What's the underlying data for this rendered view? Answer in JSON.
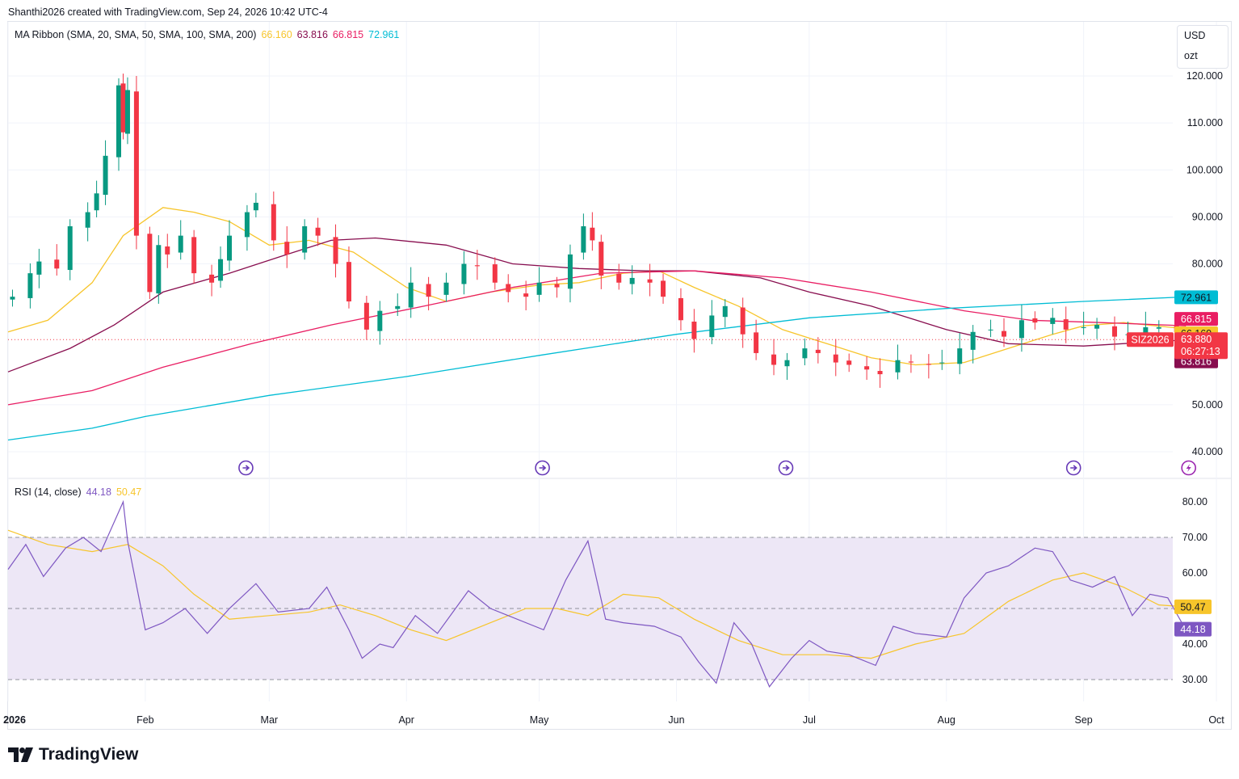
{
  "header": {
    "attribution": "Shanthi2026 created with TradingView.com, Sep 24, 2026 10:42 UTC-4"
  },
  "unit_selector": {
    "currency": "USD",
    "unit": "ozt"
  },
  "legend_main": {
    "label": "MA Ribbon (SMA, 20, SMA, 50, SMA, 100, SMA, 200)",
    "values": [
      "66.160",
      "63.816",
      "66.815",
      "72.961"
    ]
  },
  "legend_rsi": {
    "label": "RSI (14, close)",
    "values": [
      "44.18",
      "50.47"
    ]
  },
  "symbol_badge": {
    "symbol": "SIZ2026",
    "price": "63.880",
    "countdown": "06:27:13"
  },
  "logo": {
    "text": "TradingView"
  },
  "colors": {
    "up": "#089981",
    "down": "#f23645",
    "sma20": "#f7c52b",
    "sma50": "#880e4f",
    "sma100": "#e91e63",
    "sma200": "#00bcd4",
    "rsi": "#7e57c2",
    "rsi_ma": "#f7c52b",
    "rsi_band": "#ede7f6",
    "event_icon": "#673ab7"
  },
  "chart_data": [
    {
      "type": "candlestick",
      "title": "",
      "xlabel": "",
      "ylabel": "",
      "ylim": [
        36,
        128
      ],
      "y_ticks": [
        "120.000",
        "110.000",
        "100.000",
        "90.000",
        "80.000",
        "50.000",
        "40.000"
      ],
      "x_ticks": [
        "2026",
        "Feb",
        "Mar",
        "Apr",
        "May",
        "Jun",
        "Jul",
        "Aug",
        "Sep",
        "Oct"
      ],
      "close_points": [
        [
          "2026-01-02",
          73.0
        ],
        [
          "2026-01-06",
          78.0
        ],
        [
          "2026-01-08",
          80.5
        ],
        [
          "2026-01-12",
          79.0
        ],
        [
          "2026-01-15",
          88.0
        ],
        [
          "2026-01-19",
          91.0
        ],
        [
          "2026-01-21",
          95.0
        ],
        [
          "2026-01-23",
          103.0
        ],
        [
          "2026-01-26",
          118.0
        ],
        [
          "2026-01-27",
          108.0
        ],
        [
          "2026-01-28",
          117.0
        ],
        [
          "2026-01-30",
          86.0
        ],
        [
          "2026-02-02",
          74.0
        ],
        [
          "2026-02-04",
          84.0
        ],
        [
          "2026-02-06",
          82.0
        ],
        [
          "2026-02-09",
          86.0
        ],
        [
          "2026-02-12",
          78.0
        ],
        [
          "2026-02-16",
          76.0
        ],
        [
          "2026-02-18",
          81.0
        ],
        [
          "2026-02-20",
          86.0
        ],
        [
          "2026-02-24",
          91.0
        ],
        [
          "2026-02-26",
          93.0
        ],
        [
          "2026-03-02",
          85.0
        ],
        [
          "2026-03-05",
          82.0
        ],
        [
          "2026-03-09",
          88.0
        ],
        [
          "2026-03-12",
          86.0
        ],
        [
          "2026-03-16",
          80.0
        ],
        [
          "2026-03-19",
          72.0
        ],
        [
          "2026-03-23",
          66.0
        ],
        [
          "2026-03-26",
          70.0
        ],
        [
          "2026-03-30",
          71.0
        ],
        [
          "2026-04-02",
          76.0
        ],
        [
          "2026-04-06",
          73.0
        ],
        [
          "2026-04-10",
          76.0
        ],
        [
          "2026-04-14",
          80.0
        ],
        [
          "2026-04-17",
          79.5
        ],
        [
          "2026-04-21",
          76.0
        ],
        [
          "2026-04-24",
          74.0
        ],
        [
          "2026-04-28",
          73.0
        ],
        [
          "2026-05-01",
          76.0
        ],
        [
          "2026-05-05",
          75.0
        ],
        [
          "2026-05-08",
          82.0
        ],
        [
          "2026-05-11",
          88.0
        ],
        [
          "2026-05-13",
          85.0
        ],
        [
          "2026-05-15",
          77.5
        ],
        [
          "2026-05-19",
          76.0
        ],
        [
          "2026-05-22",
          77.0
        ],
        [
          "2026-05-26",
          76.0
        ],
        [
          "2026-05-29",
          73.0
        ],
        [
          "2026-06-02",
          68.0
        ],
        [
          "2026-06-05",
          64.0
        ],
        [
          "2026-06-09",
          69.0
        ],
        [
          "2026-06-12",
          71.0
        ],
        [
          "2026-06-16",
          65.0
        ],
        [
          "2026-06-19",
          61.0
        ],
        [
          "2026-06-23",
          58.5
        ],
        [
          "2026-06-26",
          59.5
        ],
        [
          "2026-06-30",
          62.0
        ],
        [
          "2026-07-03",
          61.0
        ],
        [
          "2026-07-07",
          59.0
        ],
        [
          "2026-07-10",
          58.5
        ],
        [
          "2026-07-14",
          57.5
        ],
        [
          "2026-07-17",
          56.5
        ],
        [
          "2026-07-21",
          59.5
        ],
        [
          "2026-07-24",
          59.0
        ],
        [
          "2026-07-28",
          58.5
        ],
        [
          "2026-07-31",
          59.0
        ],
        [
          "2026-08-04",
          62.0
        ],
        [
          "2026-08-07",
          65.5
        ],
        [
          "2026-08-11",
          66.0
        ],
        [
          "2026-08-14",
          64.5
        ],
        [
          "2026-08-18",
          68.0
        ],
        [
          "2026-08-21",
          67.5
        ],
        [
          "2026-08-25",
          68.5
        ],
        [
          "2026-08-28",
          66.0
        ],
        [
          "2026-09-01",
          66.5
        ],
        [
          "2026-09-04",
          67.0
        ],
        [
          "2026-09-08",
          64.5
        ],
        [
          "2026-09-11",
          65.0
        ],
        [
          "2026-09-15",
          66.5
        ],
        [
          "2026-09-18",
          66.5
        ],
        [
          "2026-09-22",
          65.5
        ],
        [
          "2026-09-24",
          63.88
        ]
      ],
      "series": [
        {
          "name": "SMA 20",
          "last": 66.16,
          "points": [
            [
              "2026-01-01",
              65.5
            ],
            [
              "2026-01-10",
              68.0
            ],
            [
              "2026-01-20",
              76.0
            ],
            [
              "2026-01-27",
              86.0
            ],
            [
              "2026-02-05",
              92.0
            ],
            [
              "2026-02-12",
              91.0
            ],
            [
              "2026-02-20",
              89.0
            ],
            [
              "2026-03-01",
              84.0
            ],
            [
              "2026-03-10",
              85.0
            ],
            [
              "2026-03-20",
              82.5
            ],
            [
              "2026-04-01",
              75.0
            ],
            [
              "2026-04-10",
              72.0
            ],
            [
              "2026-04-20",
              74.0
            ],
            [
              "2026-05-01",
              75.5
            ],
            [
              "2026-05-10",
              76.0
            ],
            [
              "2026-05-20",
              78.0
            ],
            [
              "2026-05-28",
              78.5
            ],
            [
              "2026-06-05",
              75.0
            ],
            [
              "2026-06-15",
              71.0
            ],
            [
              "2026-06-25",
              66.0
            ],
            [
              "2026-07-05",
              63.0
            ],
            [
              "2026-07-15",
              60.0
            ],
            [
              "2026-07-25",
              58.5
            ],
            [
              "2026-08-05",
              59.0
            ],
            [
              "2026-08-15",
              62.0
            ],
            [
              "2026-08-25",
              65.0
            ],
            [
              "2026-09-01",
              66.8
            ],
            [
              "2026-09-10",
              67.5
            ],
            [
              "2026-09-24",
              66.16
            ]
          ]
        },
        {
          "name": "SMA 50",
          "last": 63.816,
          "points": [
            [
              "2026-01-01",
              57.0
            ],
            [
              "2026-01-15",
              62.0
            ],
            [
              "2026-01-25",
              67.0
            ],
            [
              "2026-02-05",
              74.0
            ],
            [
              "2026-02-20",
              78.0
            ],
            [
              "2026-03-05",
              82.0
            ],
            [
              "2026-03-15",
              85.0
            ],
            [
              "2026-03-25",
              85.5
            ],
            [
              "2026-04-10",
              84.0
            ],
            [
              "2026-04-25",
              80.0
            ],
            [
              "2026-05-10",
              79.0
            ],
            [
              "2026-05-25",
              78.5
            ],
            [
              "2026-06-05",
              78.5
            ],
            [
              "2026-06-20",
              77.0
            ],
            [
              "2026-07-01",
              74.0
            ],
            [
              "2026-07-15",
              71.0
            ],
            [
              "2026-08-01",
              66.0
            ],
            [
              "2026-08-15",
              63.0
            ],
            [
              "2026-09-01",
              62.5
            ],
            [
              "2026-09-24",
              63.816
            ]
          ]
        },
        {
          "name": "SMA 100",
          "last": 66.815,
          "points": [
            [
              "2026-01-01",
              50.0
            ],
            [
              "2026-01-20",
              53.0
            ],
            [
              "2026-02-05",
              58.0
            ],
            [
              "2026-02-25",
              63.0
            ],
            [
              "2026-03-15",
              67.0
            ],
            [
              "2026-04-05",
              71.0
            ],
            [
              "2026-04-25",
              75.0
            ],
            [
              "2026-05-15",
              78.0
            ],
            [
              "2026-06-05",
              78.5
            ],
            [
              "2026-06-25",
              77.0
            ],
            [
              "2026-07-15",
              74.0
            ],
            [
              "2026-08-05",
              70.0
            ],
            [
              "2026-08-20",
              68.0
            ],
            [
              "2026-09-05",
              67.5
            ],
            [
              "2026-09-24",
              66.815
            ]
          ]
        },
        {
          "name": "SMA 200",
          "last": 72.961,
          "points": [
            [
              "2026-01-01",
              42.5
            ],
            [
              "2026-01-20",
              45.0
            ],
            [
              "2026-02-01",
              47.5
            ],
            [
              "2026-03-01",
              52.0
            ],
            [
              "2026-04-01",
              56.0
            ],
            [
              "2026-05-01",
              60.5
            ],
            [
              "2026-06-01",
              65.0
            ],
            [
              "2026-07-01",
              68.5
            ],
            [
              "2026-08-01",
              70.5
            ],
            [
              "2026-09-01",
              72.0
            ],
            [
              "2026-09-24",
              72.961
            ]
          ]
        }
      ]
    },
    {
      "type": "line",
      "title": "",
      "xlabel": "",
      "ylabel": "",
      "ylim": [
        27,
        81
      ],
      "y_ticks": [
        "80.00",
        "70.00",
        "60.00",
        "50.00",
        "40.00",
        "30.00"
      ],
      "bands": [
        30,
        50,
        70
      ],
      "series": [
        {
          "name": "RSI",
          "last": 44.18,
          "points": [
            [
              "2026-01-01",
              61
            ],
            [
              "2026-01-05",
              68
            ],
            [
              "2026-01-09",
              59
            ],
            [
              "2026-01-14",
              67
            ],
            [
              "2026-01-18",
              70
            ],
            [
              "2026-01-22",
              66
            ],
            [
              "2026-01-27",
              80
            ],
            [
              "2026-01-28",
              69
            ],
            [
              "2026-02-01",
              44
            ],
            [
              "2026-02-05",
              46
            ],
            [
              "2026-02-10",
              50
            ],
            [
              "2026-02-15",
              43
            ],
            [
              "2026-02-20",
              50
            ],
            [
              "2026-02-26",
              57
            ],
            [
              "2026-03-03",
              49
            ],
            [
              "2026-03-10",
              50
            ],
            [
              "2026-03-14",
              56
            ],
            [
              "2026-03-19",
              44
            ],
            [
              "2026-03-22",
              36
            ],
            [
              "2026-03-26",
              40
            ],
            [
              "2026-03-29",
              39
            ],
            [
              "2026-04-03",
              48
            ],
            [
              "2026-04-08",
              43
            ],
            [
              "2026-04-15",
              55
            ],
            [
              "2026-04-20",
              50
            ],
            [
              "2026-04-24",
              48
            ],
            [
              "2026-05-02",
              44
            ],
            [
              "2026-05-07",
              58
            ],
            [
              "2026-05-12",
              69
            ],
            [
              "2026-05-16",
              47
            ],
            [
              "2026-05-20",
              46
            ],
            [
              "2026-05-27",
              45
            ],
            [
              "2026-06-02",
              42
            ],
            [
              "2026-06-06",
              35
            ],
            [
              "2026-06-10",
              29
            ],
            [
              "2026-06-14",
              46
            ],
            [
              "2026-06-18",
              40
            ],
            [
              "2026-06-22",
              28
            ],
            [
              "2026-06-27",
              36
            ],
            [
              "2026-07-01",
              41
            ],
            [
              "2026-07-05",
              38
            ],
            [
              "2026-07-10",
              37
            ],
            [
              "2026-07-16",
              34
            ],
            [
              "2026-07-20",
              45
            ],
            [
              "2026-07-25",
              43
            ],
            [
              "2026-08-01",
              42
            ],
            [
              "2026-08-05",
              53
            ],
            [
              "2026-08-10",
              60
            ],
            [
              "2026-08-15",
              62
            ],
            [
              "2026-08-21",
              67
            ],
            [
              "2026-08-25",
              66
            ],
            [
              "2026-08-29",
              58
            ],
            [
              "2026-09-03",
              56
            ],
            [
              "2026-09-08",
              59
            ],
            [
              "2026-09-12",
              48
            ],
            [
              "2026-09-16",
              54
            ],
            [
              "2026-09-20",
              53
            ],
            [
              "2026-09-24",
              44.18
            ]
          ]
        },
        {
          "name": "RSI-based MA",
          "last": 50.47,
          "points": [
            [
              "2026-01-01",
              72
            ],
            [
              "2026-01-10",
              68
            ],
            [
              "2026-01-20",
              66
            ],
            [
              "2026-01-28",
              68
            ],
            [
              "2026-02-05",
              62
            ],
            [
              "2026-02-12",
              54
            ],
            [
              "2026-02-20",
              47
            ],
            [
              "2026-03-01",
              48
            ],
            [
              "2026-03-10",
              49
            ],
            [
              "2026-03-17",
              51
            ],
            [
              "2026-03-25",
              48
            ],
            [
              "2026-04-02",
              44
            ],
            [
              "2026-04-10",
              41
            ],
            [
              "2026-04-20",
              46
            ],
            [
              "2026-04-28",
              50
            ],
            [
              "2026-05-05",
              50
            ],
            [
              "2026-05-12",
              48
            ],
            [
              "2026-05-20",
              54
            ],
            [
              "2026-05-28",
              53
            ],
            [
              "2026-06-05",
              47
            ],
            [
              "2026-06-15",
              41
            ],
            [
              "2026-06-25",
              37
            ],
            [
              "2026-07-05",
              37
            ],
            [
              "2026-07-15",
              36
            ],
            [
              "2026-07-25",
              40
            ],
            [
              "2026-08-05",
              43
            ],
            [
              "2026-08-15",
              52
            ],
            [
              "2026-08-25",
              58
            ],
            [
              "2026-09-01",
              60
            ],
            [
              "2026-09-10",
              56
            ],
            [
              "2026-09-18",
              51
            ],
            [
              "2026-09-24",
              50.47
            ]
          ]
        }
      ]
    }
  ]
}
